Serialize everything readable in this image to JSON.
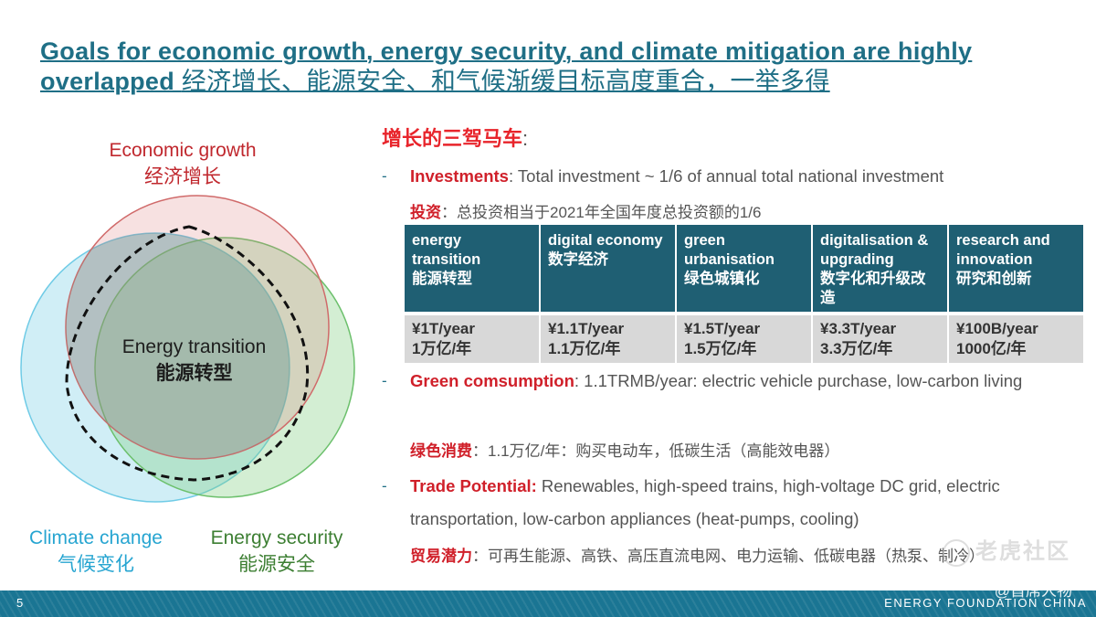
{
  "slide": {
    "title_en": "Goals for economic growth, energy security, and climate mitigation are highly overlapped ",
    "title_cn": "经济增长、能源安全、和气候渐缓目标高度重合，一举多得",
    "page_number": "5",
    "org": "ENERGY FOUNDATION CHINA",
    "handle": "@首席人物",
    "watermark": "老虎社区"
  },
  "venn": {
    "economic_en": "Economic growth",
    "economic_cn": "经济增长",
    "core_en": "Energy transition",
    "core_cn": "能源转型",
    "climate_en": "Climate change",
    "climate_cn": "气候变化",
    "security_en": "Energy security",
    "security_cn": "能源安全",
    "colors": {
      "economic": "#c0282e",
      "climate": "#27a5d1",
      "security": "#3d7f33"
    }
  },
  "content": {
    "heading": "增长的三驾马车",
    "heading_colon": ":",
    "bullet_glyph": "-",
    "investments": {
      "label": "Investments",
      "text": ": Total investment ~ 1/6 of  annual total national investment",
      "cn_label": "投资",
      "cn_text": "：总投资相当于2021年全国年度总投资额的1/6"
    },
    "table": {
      "headers": [
        {
          "en": "energy transition",
          "cn": "能源转型"
        },
        {
          "en": "digital economy",
          "cn": "数字经济"
        },
        {
          "en": "green urbanisation",
          "cn": "绿色城镇化"
        },
        {
          "en": "digitalisation & upgrading",
          "cn": "数字化和升级改造"
        },
        {
          "en": "research and innovation",
          "cn": "研究和创新"
        }
      ],
      "values": [
        {
          "en": "¥1T/year",
          "cn": "1万亿/年"
        },
        {
          "en": "¥1.1T/year",
          "cn": "1.1万亿/年"
        },
        {
          "en": "¥1.5T/year",
          "cn": "1.5万亿/年"
        },
        {
          "en": "¥3.3T/year",
          "cn": "3.3万亿/年"
        },
        {
          "en": "¥100B/year",
          "cn": "1000亿/年"
        }
      ]
    },
    "green": {
      "label": "Green comsumption",
      "text": ": 1.1TRMB/year: electric vehicle purchase, low-carbon living",
      "cn_label": "绿色消费",
      "cn_text": "：1.1万亿/年：购买电动车，低碳生活（高能效电器）"
    },
    "trade": {
      "label": "Trade Potential:",
      "text": " Renewables, high-speed trains, high-voltage DC grid, electric transportation, low-carbon appliances (heat-pumps, cooling)",
      "cn_label": "贸易潜力",
      "cn_text": "：可再生能源、高铁、高压直流电网、电力运输、低碳电器（热泵、制冷）"
    }
  }
}
